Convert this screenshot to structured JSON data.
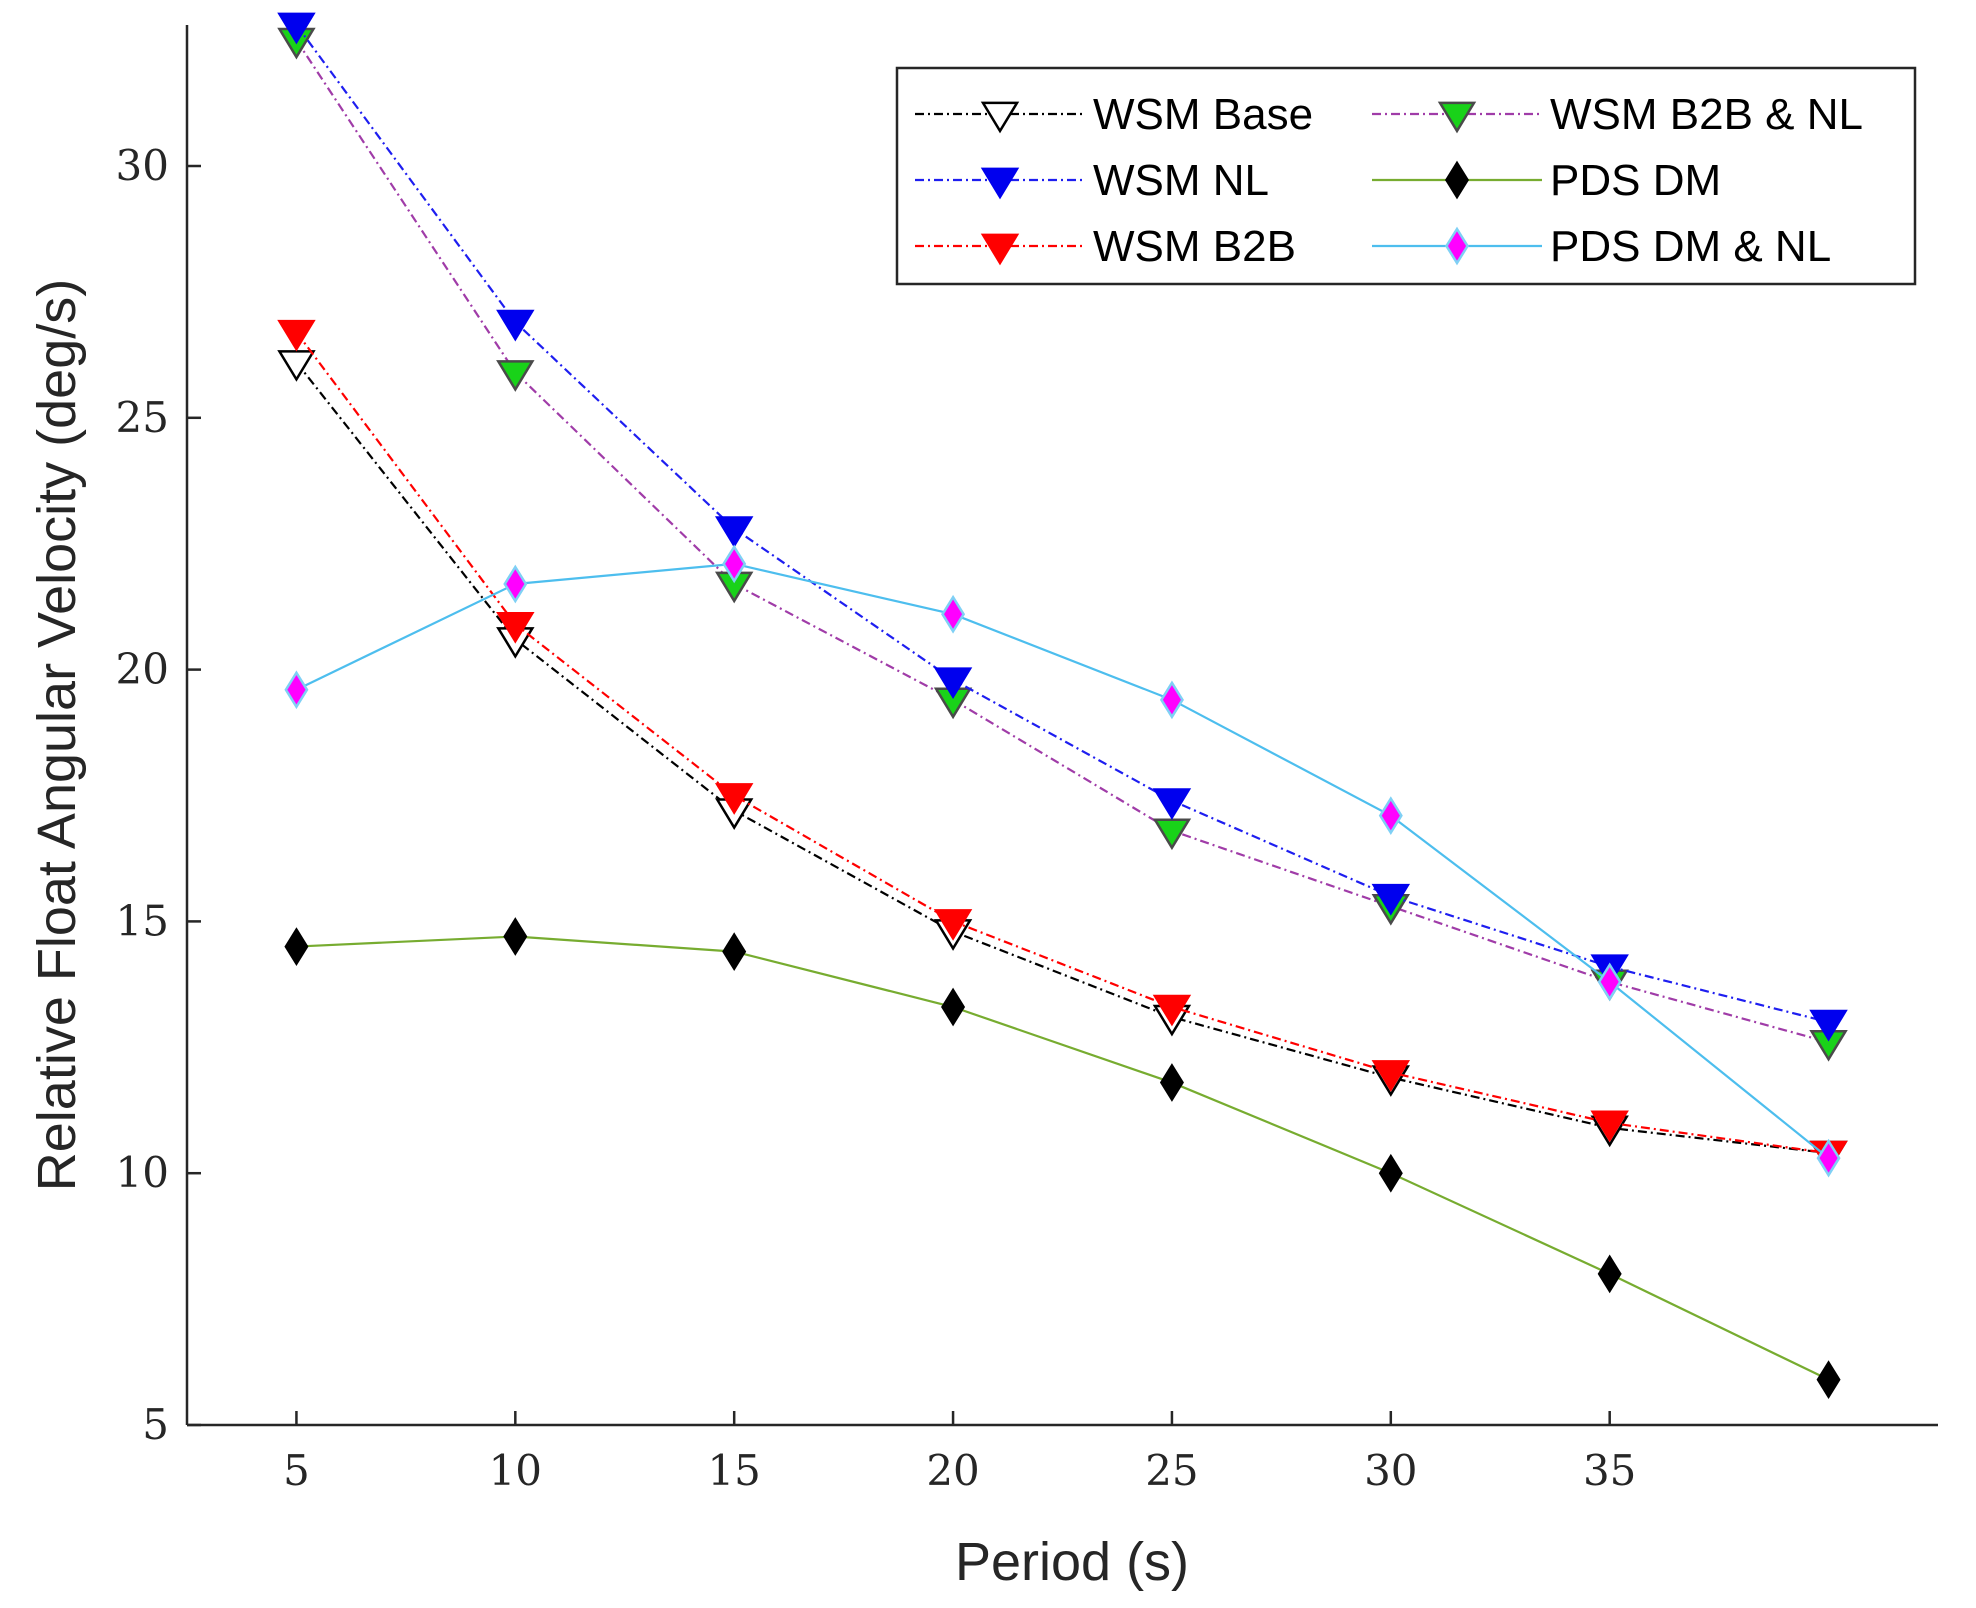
{
  "chart_data": {
    "type": "line",
    "title": "",
    "xlabel": "Period (s)",
    "ylabel": "Relative Float Angular Velocity (deg/s)",
    "xlim": [
      2.5,
      42.5
    ],
    "ylim": [
      5,
      32.8
    ],
    "xticks": [
      5,
      10,
      15,
      20,
      25,
      30,
      35
    ],
    "yticks": [
      5,
      10,
      15,
      20,
      25,
      30
    ],
    "grid": false,
    "legend_position": "top-right",
    "x": [
      5,
      10,
      15,
      20,
      25,
      30,
      35,
      40
    ],
    "series": [
      {
        "name": "WSM Base",
        "values": [
          26.1,
          20.6,
          17.2,
          14.8,
          13.1,
          11.9,
          10.9,
          10.4
        ],
        "color": "#000000",
        "marker": "triangle-down",
        "marker_fill": "#ffffff",
        "marker_edge": "#000000",
        "line_style": "dashdot"
      },
      {
        "name": "WSM B2B & NL",
        "values": [
          32.5,
          25.9,
          21.7,
          19.4,
          16.8,
          15.3,
          13.8,
          12.6
        ],
        "color": "#a03ca8",
        "marker": "triangle-down",
        "marker_fill": "#19d219",
        "marker_edge": "#4a4a4a",
        "line_style": "dashdot"
      },
      {
        "name": "WSM NL",
        "values": [
          32.8,
          26.9,
          22.8,
          19.8,
          17.4,
          15.5,
          14.1,
          13.0
        ],
        "color": "#1e1ef0",
        "marker": "triangle-down",
        "marker_fill": "#0000ee",
        "marker_edge": "#0000ee",
        "line_style": "dashdot"
      },
      {
        "name": "PDS DM",
        "values": [
          14.5,
          14.7,
          14.4,
          13.3,
          11.8,
          10.0,
          8.0,
          5.9
        ],
        "color": "#77ac30",
        "marker": "diamond",
        "marker_fill": "#000000",
        "marker_edge": "#000000",
        "line_style": "solid"
      },
      {
        "name": "WSM B2B",
        "values": [
          26.7,
          20.9,
          17.5,
          15.0,
          13.3,
          12.0,
          11.0,
          10.4
        ],
        "color": "#ff0000",
        "marker": "triangle-down",
        "marker_fill": "#ff0000",
        "marker_edge": "#ff0000",
        "line_style": "dashdot"
      },
      {
        "name": "PDS DM & NL",
        "values": [
          19.6,
          21.7,
          22.1,
          21.1,
          19.4,
          17.1,
          13.8,
          10.3
        ],
        "color": "#4dbeee",
        "marker": "diamond",
        "marker_fill": "#ff00ff",
        "marker_edge": "#7fd0f5",
        "line_style": "solid"
      }
    ]
  }
}
